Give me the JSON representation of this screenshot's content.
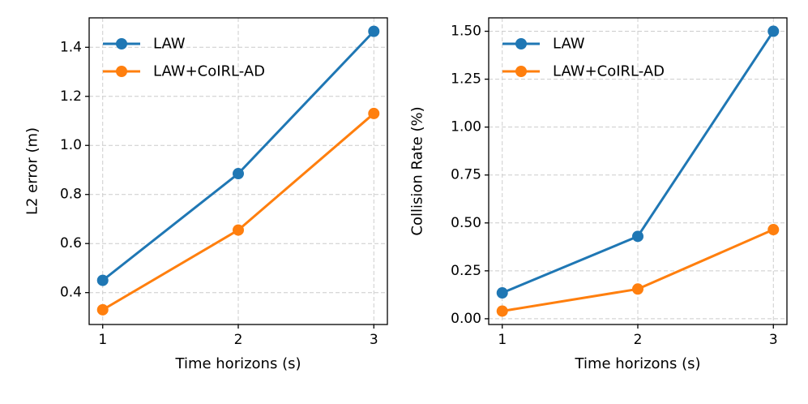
{
  "chart_data": [
    {
      "type": "line",
      "title": "",
      "xlabel": "Time horizons (s)",
      "ylabel": "L2 error (m)",
      "x": [
        1,
        2,
        3
      ],
      "xticks": [
        "1",
        "2",
        "3"
      ],
      "yticks": [
        "0.4",
        "0.6",
        "0.8",
        "1.0",
        "1.2",
        "1.4"
      ],
      "ylim": [
        0.27,
        1.52
      ],
      "grid": true,
      "legend_position": "upper-left",
      "series": [
        {
          "name": "LAW",
          "color": "#1f77b4",
          "values": [
            0.45,
            0.885,
            1.465
          ]
        },
        {
          "name": "LAW+CoIRL-AD",
          "color": "#ff7f0e",
          "values": [
            0.33,
            0.655,
            1.13
          ]
        }
      ]
    },
    {
      "type": "line",
      "title": "",
      "xlabel": "Time horizons (s)",
      "ylabel": "Collision Rate (%)",
      "x": [
        1,
        2,
        3
      ],
      "xticks": [
        "1",
        "2",
        "3"
      ],
      "yticks": [
        "0.00",
        "0.25",
        "0.50",
        "0.75",
        "1.00",
        "1.25",
        "1.50"
      ],
      "ylim": [
        -0.03,
        1.57
      ],
      "grid": true,
      "legend_position": "upper-left",
      "series": [
        {
          "name": "LAW",
          "color": "#1f77b4",
          "values": [
            0.135,
            0.43,
            1.5
          ]
        },
        {
          "name": "LAW+CoIRL-AD",
          "color": "#ff7f0e",
          "values": [
            0.04,
            0.155,
            0.465
          ]
        }
      ]
    }
  ]
}
